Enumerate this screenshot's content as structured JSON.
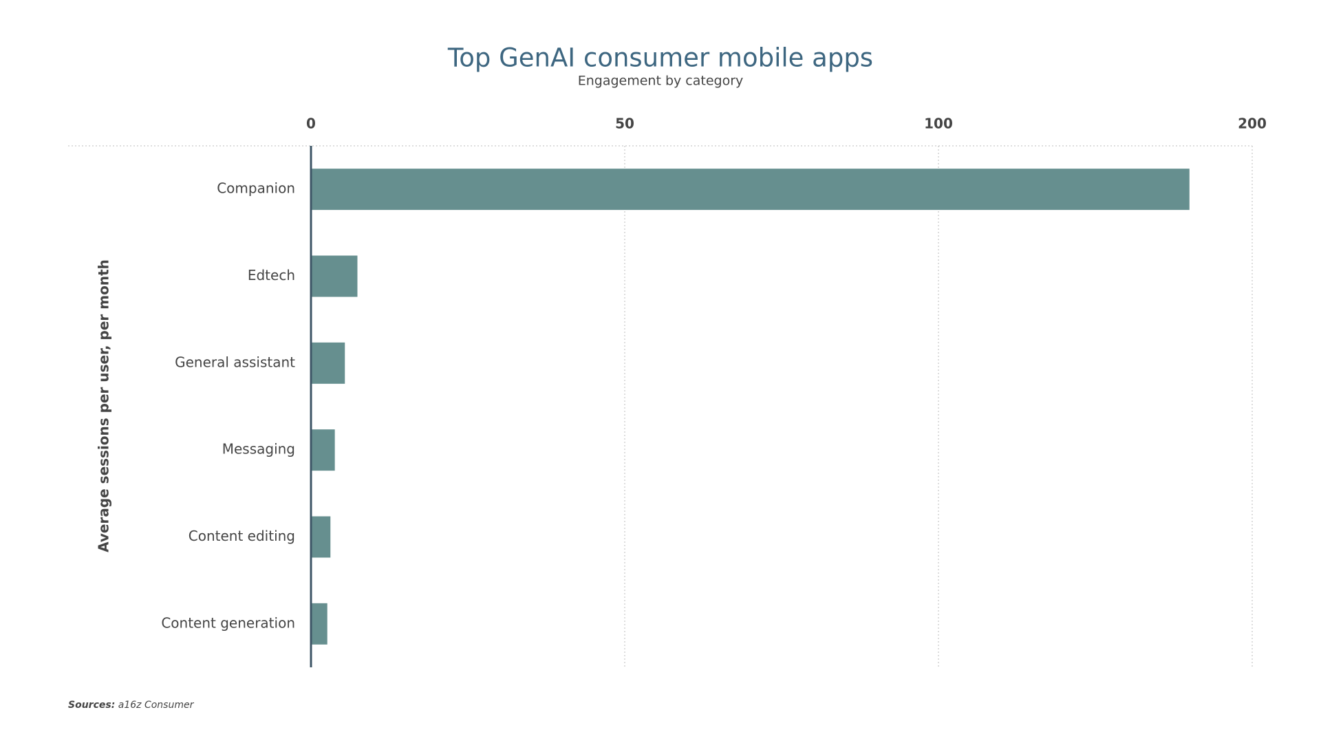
{
  "chart_data": {
    "type": "barh",
    "title": "Top GenAI consumer mobile apps",
    "subtitle": "Engagement by category",
    "y_axis_label": "Average sessions per user, per month",
    "categories": [
      "Companion",
      "Edtech",
      "General assistant",
      "Messaging",
      "Content editing",
      "Content generation"
    ],
    "values": [
      180,
      7.4,
      5.4,
      3.8,
      3.1,
      2.6
    ],
    "color": "#668f8f",
    "xlim": [
      0,
      200
    ],
    "xticks": [
      0,
      50,
      100,
      200
    ],
    "grid": true,
    "source_label": "Sources:",
    "source": "a16z Consumer"
  }
}
